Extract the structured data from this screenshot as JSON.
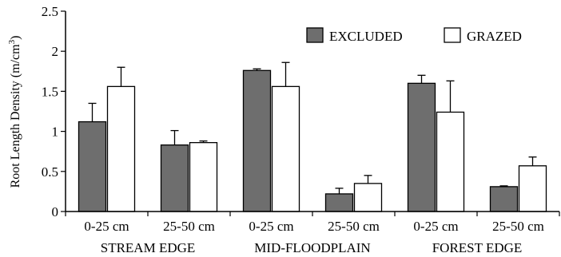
{
  "chart_data": {
    "type": "bar",
    "title": "",
    "ylabel": "Root Length Density (m/cm",
    "ylabel_sup": "3",
    "ylabel_close": ")",
    "ylim": [
      0,
      2.5
    ],
    "yticks": [
      "0",
      "0.5",
      "1",
      "1.5",
      "2",
      "2.5"
    ],
    "ytick_values": [
      0,
      0.5,
      1,
      1.5,
      2,
      2.5
    ],
    "categories": [
      "0-25 cm",
      "25-50 cm",
      "0-25 cm",
      "25-50 cm",
      "0-25 cm",
      "25-50 cm"
    ],
    "groups": [
      "STREAM EDGE",
      "MID-FLOODPLAIN",
      "FOREST EDGE"
    ],
    "legend_position": "top-right",
    "series": [
      {
        "name": "EXCLUDED",
        "color": "#6e6e6e",
        "values": [
          1.12,
          0.83,
          1.76,
          0.22,
          1.6,
          0.31
        ],
        "error": [
          0.23,
          0.18,
          0.02,
          0.07,
          0.1,
          0.01
        ]
      },
      {
        "name": "GRAZED",
        "color": "#ffffff",
        "values": [
          1.56,
          0.86,
          1.56,
          0.35,
          1.24,
          0.57
        ],
        "error": [
          0.24,
          0.02,
          0.3,
          0.1,
          0.39,
          0.11
        ]
      }
    ]
  }
}
